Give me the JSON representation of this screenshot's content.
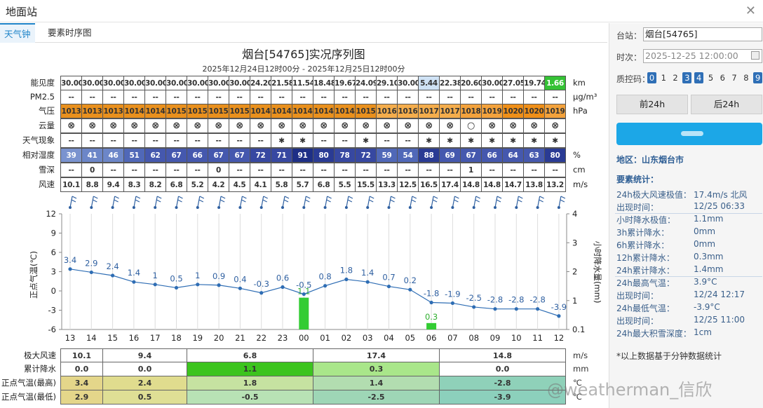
{
  "window": {
    "title": "地面站"
  },
  "tabs": [
    {
      "label": "天气钟"
    },
    {
      "label": "要素时序图"
    }
  ],
  "chart": {
    "title": "烟台[54765]实况序列图",
    "subtitle": "2025年12月24日12时00分 - 2025年12月25日12时00分"
  },
  "rows": {
    "vis": {
      "label": "能见度",
      "unit": "km",
      "values": [
        "30.00",
        "30.00",
        "30.00",
        "30.00",
        "30.00",
        "30.00",
        "30.00",
        "30.00",
        "30.00",
        "24.20",
        "21.58",
        "11.54",
        "18.48",
        "19.67",
        "24.09",
        "29.10",
        "30.00",
        "5.44",
        "22.38",
        "20.60",
        "30.00",
        "27.05",
        "19.74",
        "1.66"
      ]
    },
    "pm": {
      "label": "PM2.5",
      "unit": "μg/m³",
      "values": [
        "--",
        "--",
        "--",
        "--",
        "--",
        "--",
        "--",
        "--",
        "--",
        "--",
        "--",
        "--",
        "--",
        "--",
        "--",
        "--",
        "--",
        "--",
        "--",
        "--",
        "--",
        "--",
        "--",
        "--"
      ]
    },
    "pres": {
      "label": "气压",
      "unit": "hPa",
      "values": [
        "1013",
        "1013",
        "1013",
        "1014",
        "1014",
        "1015",
        "1015",
        "1015",
        "1015",
        "1014",
        "1014",
        "1014",
        "1014",
        "1014",
        "1015",
        "1016",
        "1016",
        "1017",
        "1017",
        "1018",
        "1019",
        "1020",
        "1020",
        "1019"
      ]
    },
    "cloud": {
      "label": "云量",
      "unit": "",
      "values": [
        "⊗",
        "⊗",
        "⊗",
        "⊗",
        "⊗",
        "⊗",
        "⊗",
        "⊗",
        "⊗",
        "⊗",
        "⊗",
        "⊗",
        "⊗",
        "⊗",
        "⊗",
        "⊗",
        "⊗",
        "⊗",
        "⊗",
        "○",
        "⊗",
        "⊗",
        "⊗",
        "⊗"
      ]
    },
    "wx": {
      "label": "天气现象",
      "unit": "",
      "values": [
        "--",
        "--",
        "--",
        "--",
        "--",
        "--",
        "--",
        "--",
        "--",
        "--",
        "✱",
        "✱",
        "--",
        "--",
        "✱",
        "--",
        "--",
        "✱",
        "✱",
        "✱",
        "✱",
        "✱",
        "✱",
        "✱"
      ]
    },
    "rh": {
      "label": "相对湿度",
      "unit": "%",
      "values": [
        "39",
        "41",
        "46",
        "51",
        "62",
        "67",
        "66",
        "67",
        "67",
        "72",
        "71",
        "91",
        "80",
        "78",
        "72",
        "59",
        "54",
        "88",
        "69",
        "67",
        "66",
        "64",
        "63",
        "80"
      ]
    },
    "snow": {
      "label": "雪深",
      "unit": "cm",
      "values": [
        "--",
        "0",
        "--",
        "--",
        "--",
        "--",
        "--",
        "0",
        "--",
        "--",
        "--",
        "--",
        "--",
        "--",
        "--",
        "--",
        "--",
        "--",
        "--",
        "1",
        "--",
        "--",
        "--",
        "--"
      ]
    },
    "wind": {
      "label": "风速",
      "unit": "m/s",
      "values": [
        "10.1",
        "8.8",
        "9.4",
        "8.3",
        "8.2",
        "6.8",
        "5.2",
        "4.2",
        "4.5",
        "4.1",
        "5.8",
        "5.7",
        "6.8",
        "5.5",
        "15.5",
        "13.3",
        "12.5",
        "16.5",
        "17.4",
        "14.8",
        "14.8",
        "14.7",
        "13.8",
        "13.2"
      ]
    }
  },
  "chart_data": {
    "type": "line",
    "categories": [
      "13",
      "14",
      "15",
      "16",
      "17",
      "18",
      "19",
      "20",
      "21",
      "22",
      "23",
      "00",
      "01",
      "02",
      "03",
      "04",
      "05",
      "06",
      "07",
      "08",
      "09",
      "10",
      "11",
      "12"
    ],
    "series": [
      {
        "name": "正点气温",
        "values": [
          3.4,
          2.9,
          2.4,
          1.4,
          1,
          0.5,
          1,
          0.9,
          0.4,
          -0.3,
          0.6,
          -0.5,
          0.8,
          1.8,
          1.4,
          0.7,
          0.2,
          -1.8,
          -1.9,
          -2.5,
          -2.8,
          -2.8,
          -2.8,
          -3.9
        ],
        "color": "#2e6db4"
      },
      {
        "name": "小时降水量",
        "type": "bar",
        "values": [
          0,
          0,
          0,
          0,
          0,
          0,
          0,
          0,
          0,
          0,
          0,
          1.1,
          0,
          0,
          0,
          0,
          0,
          0.3,
          0,
          0,
          0,
          0,
          0,
          0
        ],
        "labels": [
          "",
          "",
          "",
          "",
          "",
          "",
          "",
          "",
          "",
          "",
          "",
          "1.1",
          "",
          "",
          "",
          "",
          "",
          "0.3",
          "",
          "",
          "",
          "",
          "",
          ""
        ],
        "color": "#33cc33"
      }
    ],
    "ylabel": "正点气温(℃)",
    "y2label": "小时降水量(mm)",
    "yticks": [
      "12",
      "9",
      "6",
      "3",
      "0",
      "-3",
      "-6"
    ],
    "ylim": [
      -6,
      12
    ],
    "y2ticks": [
      "4",
      "3",
      "2",
      "1",
      "0.1"
    ]
  },
  "summary": {
    "labels": {
      "gust": "极大风速",
      "rain": "累计降水",
      "tmax": "正点气温(最高)",
      "tmin": "正点气温(最低)"
    },
    "units": {
      "gust": "m/s",
      "rain": "mm",
      "tmax": "℃",
      "tmin": "℃"
    },
    "gust": [
      "10.1",
      "9.4",
      "6.8",
      "17.4",
      "14.8"
    ],
    "rain": [
      "0.0",
      "0.0",
      "1.1",
      "0.3",
      "0.0"
    ],
    "tmax": [
      "3.4",
      "2.4",
      "1.8",
      "1.4",
      "-2.8"
    ],
    "tmin": [
      "2.9",
      "0.5",
      "-0.5",
      "-2.5",
      "-3.9"
    ]
  },
  "side": {
    "station_label": "台站：",
    "station_value": "烟台[54765]",
    "time_label": "时次：",
    "time_value": "2025-12-25 12:00:00",
    "qc_label": "质控码：",
    "qc_codes": [
      "0",
      "1",
      "2",
      "3",
      "4",
      "5",
      "6",
      "7",
      "8",
      "9"
    ],
    "prev_btn": "前24h",
    "next_btn": "后24h",
    "region": "地区：山东烟台市",
    "stats_title": "要素统计：",
    "stats": [
      {
        "k": "24h极大风速极值：",
        "v": "17.4m/s 北风"
      },
      {
        "k": "出现时间：",
        "v": "12/25 06:33"
      },
      {
        "k": "小时降水极值：",
        "v": "1.1mm"
      },
      {
        "k": "3h累计降水：",
        "v": "0mm"
      },
      {
        "k": "6h累计降水：",
        "v": "0mm"
      },
      {
        "k": "12h累计降水：",
        "v": "0.3mm"
      },
      {
        "k": "24h累计降水：",
        "v": "1.4mm"
      },
      {
        "k": "24h最高气温：",
        "v": "3.9°C"
      },
      {
        "k": "出现时间：",
        "v": "12/24 12:17"
      },
      {
        "k": "24h最低气温：",
        "v": "-3.9°C"
      },
      {
        "k": "出现时间：",
        "v": "12/25 11:00"
      },
      {
        "k": "24h最大积雪深度：",
        "v": "1cm"
      }
    ],
    "note": "*以上数据基于分钟数据统计"
  },
  "watermark": "@weatherman_信欣"
}
